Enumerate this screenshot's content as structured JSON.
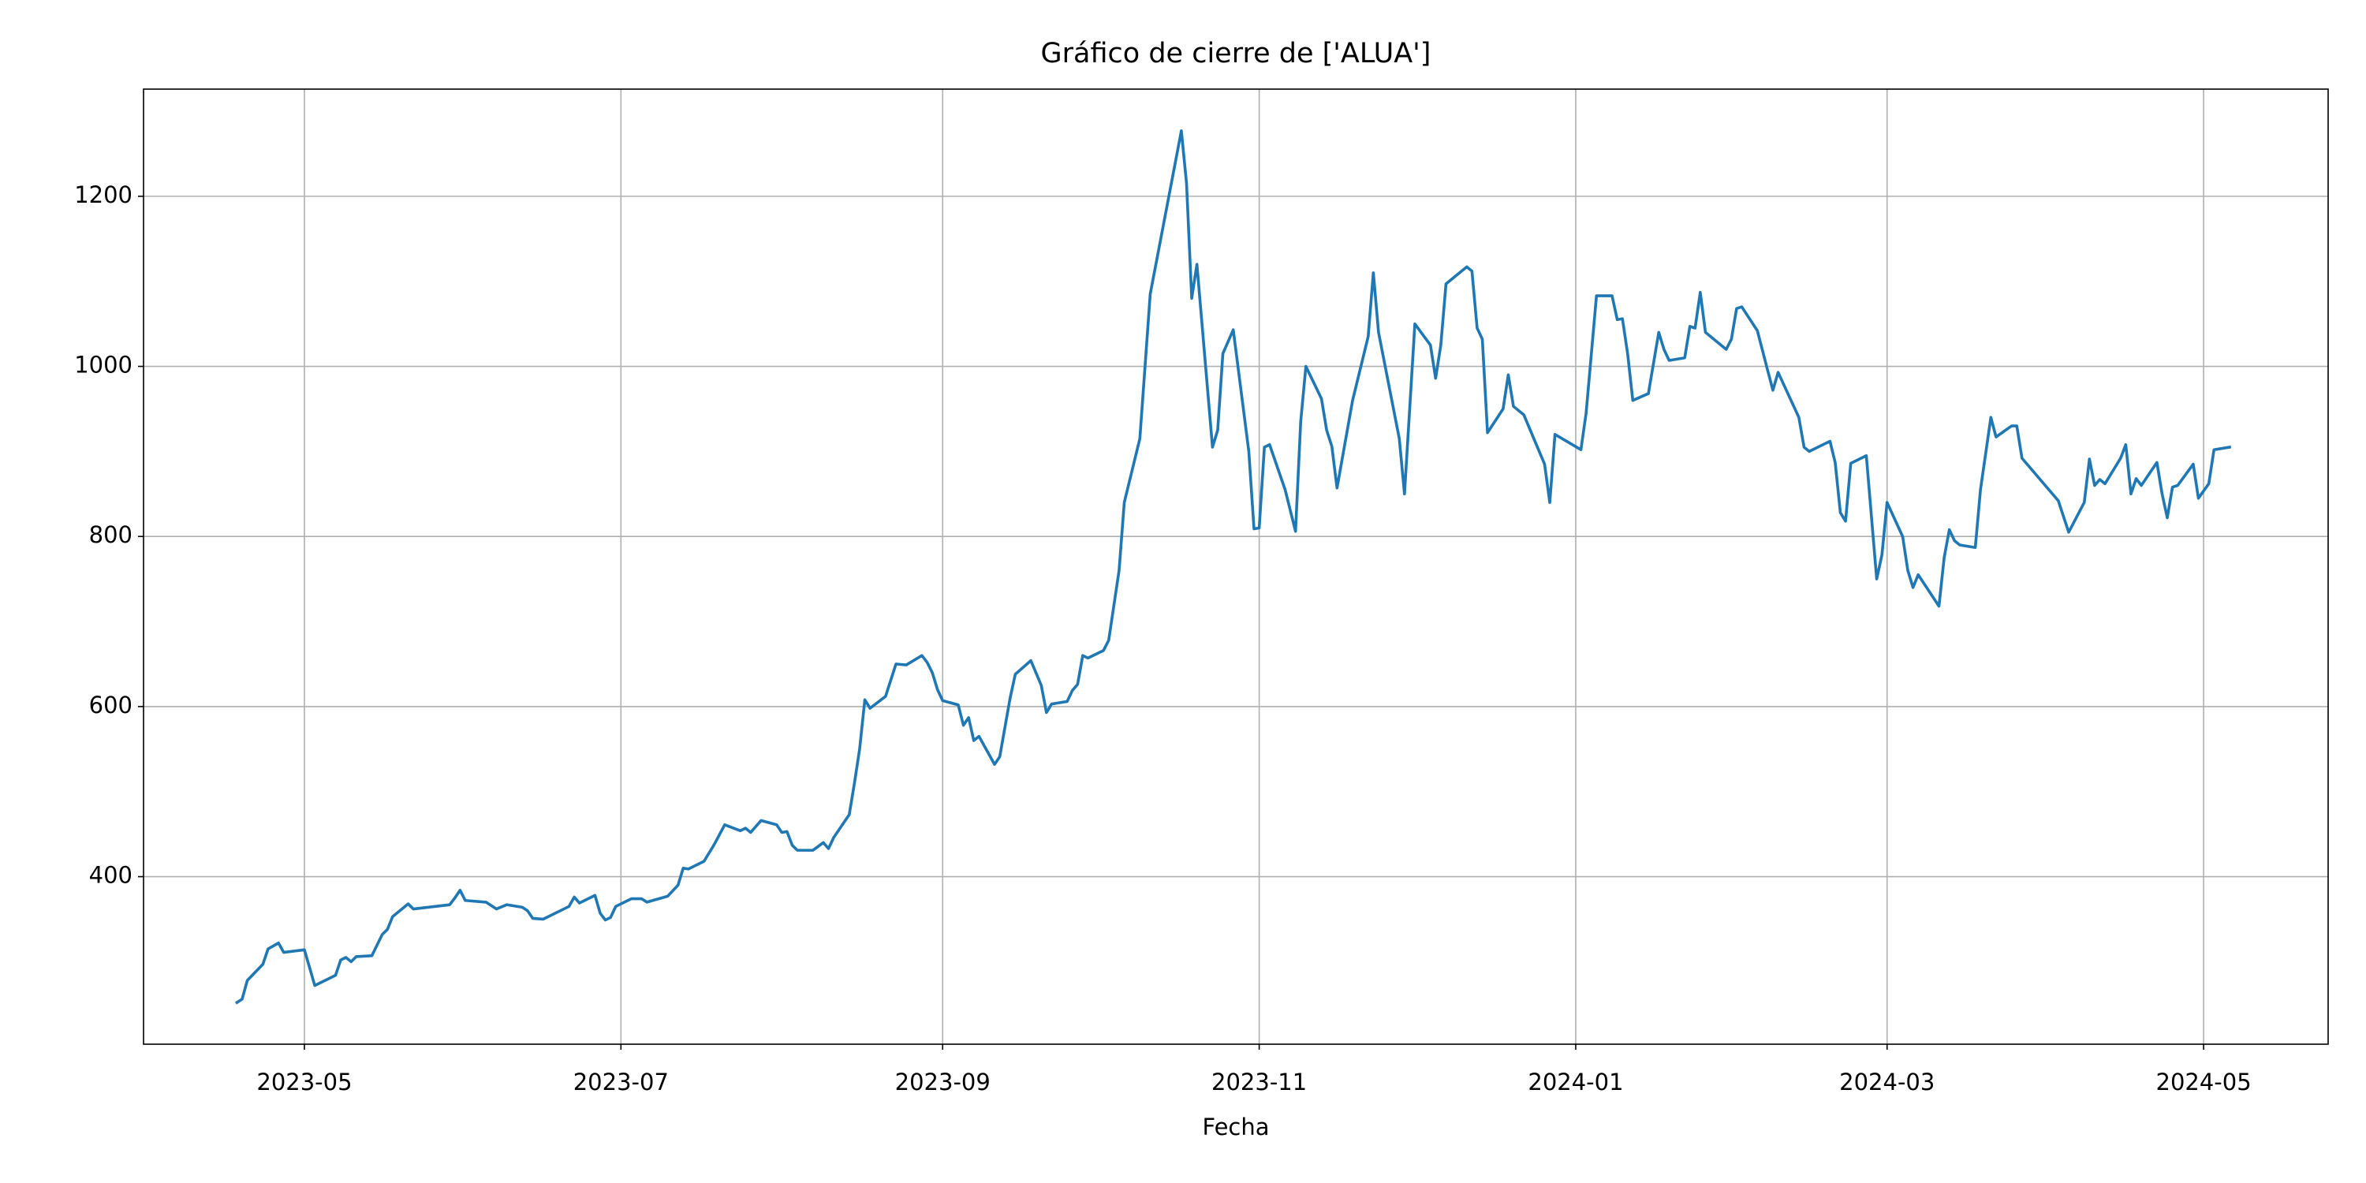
{
  "chart_data": {
    "type": "line",
    "title": "Gráfico de cierre de ['ALUA']",
    "x_label": "Fecha",
    "x": [
      "2023-04-18",
      "2023-04-19",
      "2023-04-20",
      "2023-04-23",
      "2023-04-24",
      "2023-04-26",
      "2023-04-27",
      "2023-05-01",
      "2023-05-03",
      "2023-05-07",
      "2023-05-08",
      "2023-05-09",
      "2023-05-10",
      "2023-05-11",
      "2023-05-14",
      "2023-05-16",
      "2023-05-17",
      "2023-05-18",
      "2023-05-21",
      "2023-05-22",
      "2023-05-29",
      "2023-05-30",
      "2023-05-31",
      "2023-06-01",
      "2023-06-05",
      "2023-06-07",
      "2023-06-09",
      "2023-06-12",
      "2023-06-13",
      "2023-06-14",
      "2023-06-16",
      "2023-06-21",
      "2023-06-22",
      "2023-06-23",
      "2023-06-26",
      "2023-06-27",
      "2023-06-28",
      "2023-06-29",
      "2023-06-30",
      "2023-07-03",
      "2023-07-05",
      "2023-07-06",
      "2023-07-10",
      "2023-07-12",
      "2023-07-13",
      "2023-07-14",
      "2023-07-17",
      "2023-07-19",
      "2023-07-21",
      "2023-07-24",
      "2023-07-25",
      "2023-07-26",
      "2023-07-28",
      "2023-07-31",
      "2023-08-01",
      "2023-08-02",
      "2023-08-03",
      "2023-08-04",
      "2023-08-07",
      "2023-08-09",
      "2023-08-10",
      "2023-08-11",
      "2023-08-14",
      "2023-08-15",
      "2023-08-16",
      "2023-08-17",
      "2023-08-18",
      "2023-08-21",
      "2023-08-23",
      "2023-08-25",
      "2023-08-28",
      "2023-08-29",
      "2023-08-30",
      "2023-08-31",
      "2023-09-01",
      "2023-09-04",
      "2023-09-05",
      "2023-09-06",
      "2023-09-07",
      "2023-09-08",
      "2023-09-11",
      "2023-09-12",
      "2023-09-14",
      "2023-09-15",
      "2023-09-18",
      "2023-09-20",
      "2023-09-21",
      "2023-09-22",
      "2023-09-25",
      "2023-09-26",
      "2023-09-27",
      "2023-09-28",
      "2023-09-29",
      "2023-10-02",
      "2023-10-03",
      "2023-10-05",
      "2023-10-06",
      "2023-10-09",
      "2023-10-11",
      "2023-10-17",
      "2023-10-18",
      "2023-10-19",
      "2023-10-20",
      "2023-10-23",
      "2023-10-24",
      "2023-10-25",
      "2023-10-27",
      "2023-10-30",
      "2023-10-31",
      "2023-11-01",
      "2023-11-02",
      "2023-11-03",
      "2023-11-06",
      "2023-11-08",
      "2023-11-09",
      "2023-11-10",
      "2023-11-13",
      "2023-11-14",
      "2023-11-15",
      "2023-11-16",
      "2023-11-19",
      "2023-11-22",
      "2023-11-23",
      "2023-11-24",
      "2023-11-28",
      "2023-11-29",
      "2023-11-30",
      "2023-12-01",
      "2023-12-04",
      "2023-12-05",
      "2023-12-06",
      "2023-12-07",
      "2023-12-11",
      "2023-12-12",
      "2023-12-13",
      "2023-12-14",
      "2023-12-15",
      "2023-12-18",
      "2023-12-19",
      "2023-12-20",
      "2023-12-22",
      "2023-12-26",
      "2023-12-27",
      "2023-12-28",
      "2024-01-02",
      "2024-01-03",
      "2024-01-05",
      "2024-01-08",
      "2024-01-09",
      "2024-01-10",
      "2024-01-11",
      "2024-01-12",
      "2024-01-15",
      "2024-01-17",
      "2024-01-18",
      "2024-01-19",
      "2024-01-22",
      "2024-01-23",
      "2024-01-24",
      "2024-01-25",
      "2024-01-26",
      "2024-01-30",
      "2024-01-31",
      "2024-02-01",
      "2024-02-02",
      "2024-02-05",
      "2024-02-07",
      "2024-02-08",
      "2024-02-09",
      "2024-02-13",
      "2024-02-14",
      "2024-02-15",
      "2024-02-19",
      "2024-02-20",
      "2024-02-21",
      "2024-02-22",
      "2024-02-23",
      "2024-02-26",
      "2024-02-28",
      "2024-02-29",
      "2024-03-01",
      "2024-03-04",
      "2024-03-05",
      "2024-03-06",
      "2024-03-07",
      "2024-03-11",
      "2024-03-12",
      "2024-03-13",
      "2024-03-14",
      "2024-03-15",
      "2024-03-18",
      "2024-03-19",
      "2024-03-21",
      "2024-03-22",
      "2024-03-25",
      "2024-03-26",
      "2024-03-27",
      "2024-04-03",
      "2024-04-05",
      "2024-04-08",
      "2024-04-09",
      "2024-04-10",
      "2024-04-11",
      "2024-04-12",
      "2024-04-15",
      "2024-04-16",
      "2024-04-17",
      "2024-04-18",
      "2024-04-19",
      "2024-04-22",
      "2024-04-23",
      "2024-04-24",
      "2024-04-25",
      "2024-04-26",
      "2024-04-29",
      "2024-04-30",
      "2024-05-02",
      "2024-05-03",
      "2024-05-06"
    ],
    "values": [
      252,
      256,
      278,
      297,
      315,
      322,
      311,
      314,
      272,
      284,
      302,
      305,
      300,
      306,
      307,
      332,
      338,
      353,
      368,
      362,
      367,
      375,
      384,
      372,
      370,
      362,
      367,
      364,
      360,
      351,
      350,
      365,
      376,
      369,
      378,
      357,
      349,
      352,
      365,
      374,
      374,
      370,
      377,
      390,
      410,
      409,
      418,
      438,
      461,
      454,
      457,
      452,
      466,
      461,
      452,
      453,
      437,
      431,
      431,
      440,
      433,
      446,
      473,
      510,
      550,
      608,
      598,
      612,
      650,
      649,
      660,
      652,
      640,
      620,
      607,
      602,
      578,
      587,
      560,
      565,
      532,
      541,
      610,
      638,
      654,
      625,
      593,
      603,
      606,
      619,
      626,
      660,
      657,
      666,
      678,
      760,
      840,
      915,
      1085,
      1277,
      1215,
      1080,
      1120,
      905,
      925,
      1015,
      1043,
      900,
      809,
      810,
      905,
      908,
      855,
      806,
      935,
      1000,
      962,
      925,
      906,
      857,
      960,
      1035,
      1110,
      1040,
      915,
      850,
      950,
      1050,
      1025,
      986,
      1025,
      1097,
      1117,
      1112,
      1045,
      1032,
      922,
      950,
      990,
      953,
      943,
      885,
      840,
      920,
      902,
      945,
      1083,
      1083,
      1055,
      1056,
      1015,
      960,
      968,
      1040,
      1020,
      1007,
      1010,
      1047,
      1045,
      1087,
      1040,
      1020,
      1032,
      1068,
      1070,
      1042,
      995,
      972,
      993,
      940,
      905,
      900,
      912,
      887,
      828,
      818,
      886,
      895,
      750,
      778,
      840,
      800,
      760,
      740,
      755,
      718,
      775,
      808,
      795,
      790,
      787,
      855,
      940,
      917,
      930,
      930,
      892,
      842,
      805,
      840,
      891,
      860,
      867,
      862,
      892,
      908,
      850,
      868,
      860,
      887,
      850,
      822,
      858,
      860,
      885,
      845,
      862,
      902,
      905
    ],
    "color": "#1f77b4",
    "xlim": [
      "2023-03-31",
      "2024-05-25"
    ],
    "xticks": [
      "2023-05",
      "2023-07",
      "2023-09",
      "2023-11",
      "2024-01",
      "2024-03",
      "2024-05"
    ],
    "ylim": [
      203,
      1326
    ],
    "yticks": [
      400,
      600,
      800,
      1000,
      1200
    ],
    "grid": true
  }
}
